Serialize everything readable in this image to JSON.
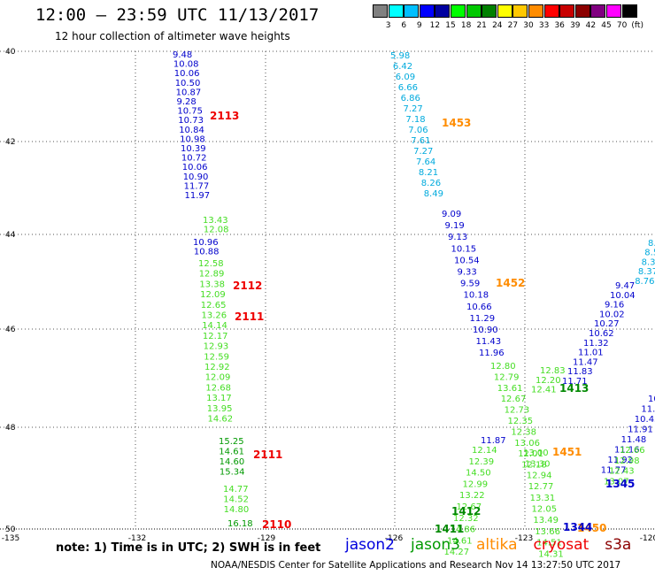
{
  "title": "12:00 — 23:59 UTC 11/13/2017",
  "subtitle": "12 hour collection of altimeter wave heights",
  "colorbar": {
    "unit": "(ft)",
    "colors": [
      "#808080",
      "#00ffff",
      "#00bfff",
      "#0000ff",
      "#0000a0",
      "#00ff00",
      "#00c800",
      "#008000",
      "#ffff00",
      "#ffc800",
      "#ff8c00",
      "#ff0000",
      "#c80000",
      "#8b0000",
      "#800080",
      "#ff00ff",
      "#000000"
    ],
    "labels": [
      "3",
      "6",
      "9",
      "12",
      "15",
      "18",
      "21",
      "24",
      "27",
      "30",
      "33",
      "36",
      "39",
      "42",
      "45",
      "70"
    ]
  },
  "axes": {
    "lon_ticks": [
      "-135",
      "-132",
      "-129",
      "-126",
      "-123",
      "-120"
    ],
    "lat_ticks": [
      "40",
      "42",
      "44",
      "46",
      "48",
      "50"
    ]
  },
  "tracks": [
    {
      "id": "A",
      "color": "#0000cc",
      "values": [
        "9.48",
        "10.08",
        "10.06",
        "10.50",
        "10.87",
        "9.28",
        "10.75",
        "10.73",
        "10.84",
        "10.98",
        "10.39",
        "10.72",
        "10.06",
        "10.90",
        "11.77",
        "11.97"
      ]
    },
    {
      "id": "B",
      "color": "#44dd22",
      "values": [
        "13.43",
        "12.08"
      ]
    },
    {
      "id": "C",
      "color": "#0000cc",
      "values": [
        "10.96",
        "10.88"
      ]
    },
    {
      "id": "D",
      "color": "#44dd22",
      "values": [
        "12.58",
        "12.89",
        "13.38",
        "12.09",
        "12.65",
        "13.26",
        "14.14",
        "12.17",
        "12.93",
        "12.59",
        "12.92",
        "12.09",
        "12.68",
        "13.17",
        "13.95",
        "14.62"
      ]
    },
    {
      "id": "E",
      "color": "#009900",
      "values": [
        "15.25",
        "14.61",
        "14.60",
        "15.34"
      ]
    },
    {
      "id": "F",
      "color": "#44dd22",
      "values": [
        "14.77",
        "14.52",
        "14.80"
      ]
    },
    {
      "id": "G",
      "color": "#009900",
      "values": [
        "16.18"
      ]
    },
    {
      "id": "H",
      "color": "#00aadd",
      "values": [
        "5.98",
        "6.42",
        "6.09",
        "6.66",
        "6.86",
        "7.27",
        "7.18",
        "7.06",
        "7.61",
        "7.27",
        "7.64",
        "8.21",
        "8.26",
        "8.49"
      ]
    },
    {
      "id": "I",
      "color": "#0000cc",
      "values": [
        "9.09",
        "9.19",
        "9.13",
        "10.15",
        "10.54",
        "9.33",
        "9.59",
        "10.18",
        "10.66",
        "11.29",
        "10.90",
        "11.43",
        "11.96"
      ]
    },
    {
      "id": "J",
      "color": "#44dd22",
      "values": [
        "12.80",
        "12.79",
        "13.61",
        "12.67",
        "12.73",
        "12.35",
        "12.38",
        "13.06",
        "12.01",
        "12.18"
      ]
    },
    {
      "id": "K",
      "color": "#0000cc",
      "values": [
        "11.87"
      ]
    },
    {
      "id": "L",
      "color": "#44dd22",
      "values": [
        "12.14",
        "12.39",
        "14.50",
        "12.99",
        "13.22",
        "12.67",
        "12.32",
        "14.86",
        "14.61",
        "14.27"
      ]
    },
    {
      "id": "M",
      "color": "#00aadd",
      "values": [
        "8.",
        "8.5",
        "8.31",
        "8.37",
        "8.76"
      ]
    },
    {
      "id": "N",
      "color": "#0000cc",
      "values": [
        "9.47",
        "10.04",
        "9.16",
        "10.02",
        "10.27",
        "10.62",
        "11.32",
        "11.01",
        "11.47",
        "11.83",
        "11.71"
      ]
    },
    {
      "id": "O",
      "color": "#44dd22",
      "values": [
        "12.83",
        "12.20",
        "12.41"
      ]
    },
    {
      "id": "P",
      "color": "#44dd22",
      "values": [
        "13.00",
        "13.30",
        "12.94",
        "12.77",
        "13.31",
        "12.05",
        "13.49",
        "13.66",
        "14.51",
        "14.31"
      ]
    },
    {
      "id": "Q",
      "color": "#0000cc",
      "values": [
        "10",
        "11.0",
        "10.45",
        "11.91",
        "11.48",
        "11.16",
        "11.92",
        "11.77"
      ]
    },
    {
      "id": "R",
      "color": "#44dd22",
      "values": [
        "12.66",
        "12.98",
        "12.43",
        "13.07"
      ]
    }
  ],
  "pass_labels": [
    {
      "text": "2113",
      "color": "#ee0000"
    },
    {
      "text": "2112",
      "color": "#ee0000"
    },
    {
      "text": "2111",
      "color": "#ee0000"
    },
    {
      "text": "2111",
      "color": "#ee0000"
    },
    {
      "text": "2110",
      "color": "#ee0000"
    },
    {
      "text": "1453",
      "color": "#ff8c00"
    },
    {
      "text": "1452",
      "color": "#ff8c00"
    },
    {
      "text": "1451",
      "color": "#ff8c00"
    },
    {
      "text": "1450",
      "color": "#ff8c00"
    },
    {
      "text": "1413",
      "color": "#008800"
    },
    {
      "text": "1412",
      "color": "#008800"
    },
    {
      "text": "1411",
      "color": "#008800"
    },
    {
      "text": "1345",
      "color": "#0000cc"
    },
    {
      "text": "1344",
      "color": "#0000cc"
    }
  ],
  "note": "note: 1) Time is in UTC; 2) SWH is in feet",
  "legend": [
    {
      "label": "jason2",
      "color": "#0000dd"
    },
    {
      "label": "jason3",
      "color": "#009900"
    },
    {
      "label": "altika",
      "color": "#ff8c00"
    },
    {
      "label": "cryosat",
      "color": "#ee0000"
    },
    {
      "label": "s3a",
      "color": "#8b0000"
    }
  ],
  "footer": "NOAA/NESDIS Center for Satellite Applications and Research   Nov 14 13:27:50 UTC 2017"
}
